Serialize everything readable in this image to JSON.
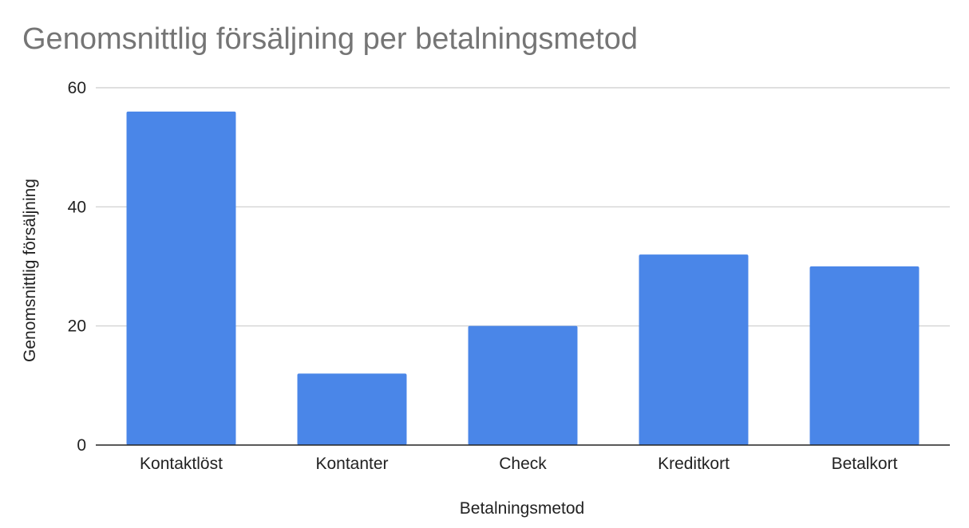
{
  "chart_data": {
    "type": "bar",
    "title": "Genomsnittlig försäljning per betalningsmetod",
    "xlabel": "Betalningsmetod",
    "ylabel": "Genomsnittlig försäljning",
    "categories": [
      "Kontaktlöst",
      "Kontanter",
      "Check",
      "Kreditkort",
      "Betalkort"
    ],
    "values": [
      56,
      12,
      20,
      32,
      30
    ],
    "ylim": [
      0,
      60
    ],
    "yticks": [
      0,
      20,
      40,
      60
    ],
    "grid": true,
    "legend": "none",
    "colors": {
      "bar": "#4a86e8",
      "grid": "#cccccc",
      "axis": "#222222",
      "title": "#757575"
    }
  }
}
